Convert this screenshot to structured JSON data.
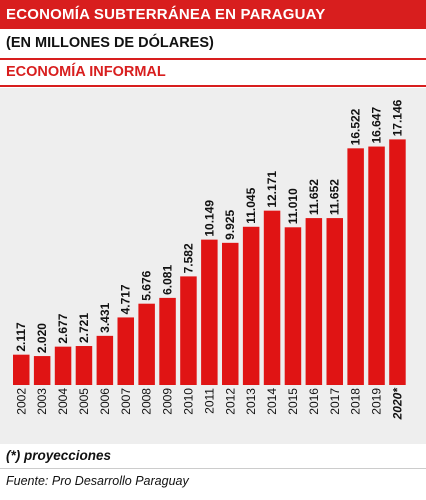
{
  "header": {
    "title": "ECONOMÍA SUBTERRÁNEA EN PARAGUAY",
    "subtitle": "(EN MILLONES DE DÓLARES)",
    "section": "ECONOMÍA INFORMAL"
  },
  "footer": {
    "note": "(*) proyecciones",
    "source": "Fuente: Pro Desarrollo Paraguay"
  },
  "colors": {
    "bar": "#e01414",
    "accent": "#d81e1e",
    "background": "#eeeeee"
  },
  "chart_data": {
    "type": "bar",
    "categories": [
      "2002",
      "2003",
      "2004",
      "2005",
      "2006",
      "2007",
      "2008",
      "2009",
      "2010",
      "2011",
      "2012",
      "2013",
      "2014",
      "2015",
      "2016",
      "2017",
      "2018",
      "2019",
      "2020*"
    ],
    "values": [
      2117,
      2020,
      2677,
      2721,
      3431,
      4717,
      5676,
      6081,
      7582,
      10149,
      9925,
      11045,
      12171,
      11010,
      11652,
      11652,
      16522,
      16647,
      17146
    ],
    "value_labels": [
      "2.117",
      "2.020",
      "2.677",
      "2.721",
      "3.431",
      "4.717",
      "5.676",
      "6.081",
      "7.582",
      "10.149",
      "9.925",
      "11.045",
      "12.171",
      "11.010",
      "11.652",
      "11.652",
      "16.522",
      "16.647",
      "17.146"
    ],
    "ylim": [
      0,
      18500
    ],
    "grid": false,
    "legend": "none"
  }
}
